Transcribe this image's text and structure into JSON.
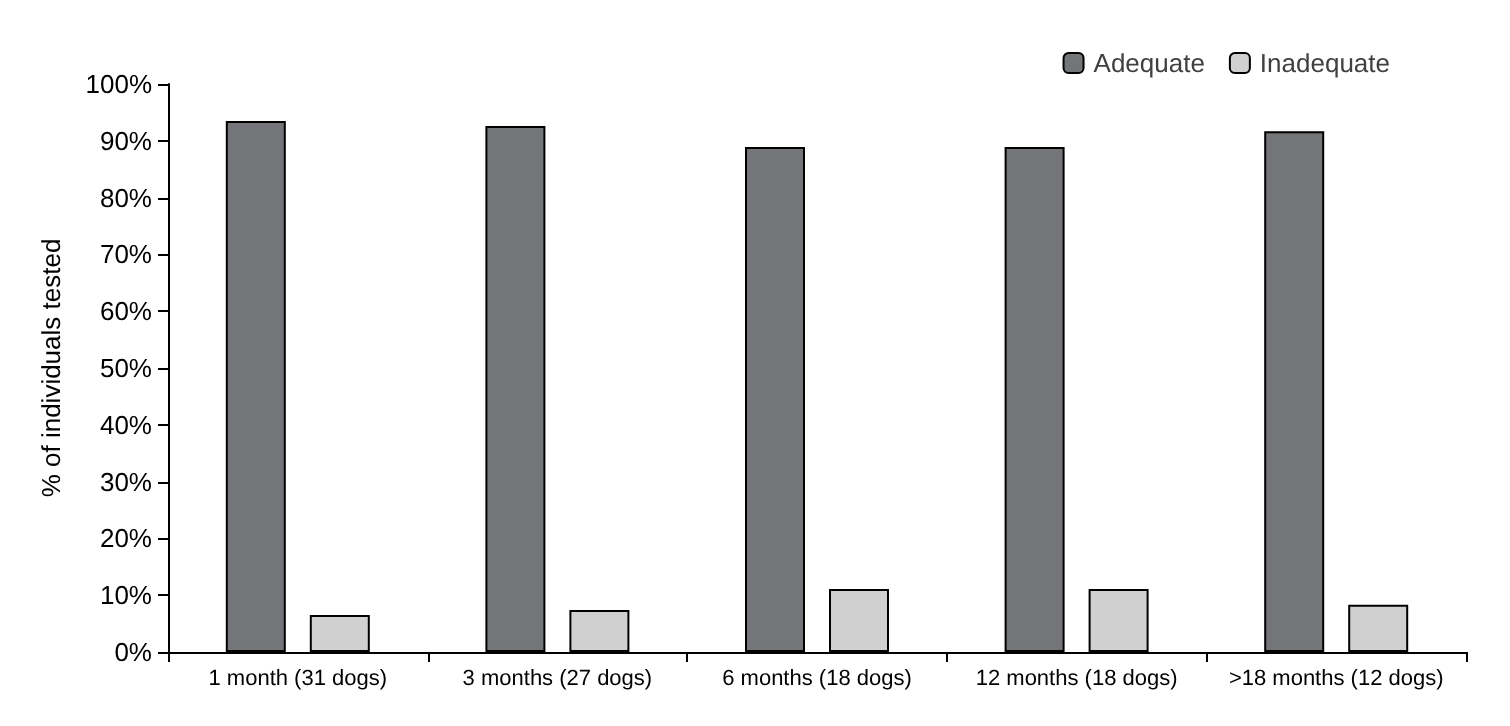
{
  "chart_data": {
    "type": "bar",
    "ylabel": "% of individuals tested",
    "categories": [
      "1 month (31 dogs)",
      "3 months (27 dogs)",
      "6 months (18 dogs)",
      "12 months (18 dogs)",
      ">18 months (12 dogs)"
    ],
    "series": [
      {
        "name": "Adequate",
        "color": "#747579",
        "values": [
          93.5,
          92.6,
          88.9,
          88.9,
          91.7
        ]
      },
      {
        "name": "Inadequate",
        "color": "#d0d0d0",
        "values": [
          6.5,
          7.4,
          11.1,
          11.1,
          8.3
        ]
      }
    ],
    "ylim": [
      0,
      100
    ],
    "yticks": [
      {
        "value": 0,
        "label": "0%"
      },
      {
        "value": 10,
        "label": "10%"
      },
      {
        "value": 20,
        "label": "20%"
      },
      {
        "value": 30,
        "label": "30%"
      },
      {
        "value": 40,
        "label": "40%"
      },
      {
        "value": 50,
        "label": "50%"
      },
      {
        "value": 60,
        "label": "60%"
      },
      {
        "value": 70,
        "label": "70%"
      },
      {
        "value": 80,
        "label": "80%"
      },
      {
        "value": 90,
        "label": "90%"
      },
      {
        "value": 100,
        "label": "100%"
      }
    ],
    "grid": false,
    "legend": "top right"
  }
}
